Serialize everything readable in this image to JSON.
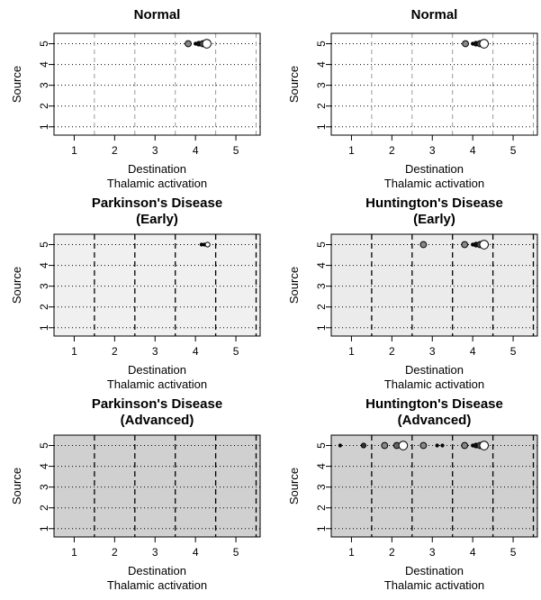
{
  "chart_data": [
    {
      "type": "scatter",
      "panel": "normal-left",
      "title": [
        "Normal"
      ],
      "xlabel": "Destination",
      "xlabel2": "Thalamic activation",
      "ylabel": "Source",
      "xlim": [
        0.5,
        5.6
      ],
      "ylim": [
        0.6,
        5.5
      ],
      "xticks": [
        1,
        2,
        3,
        4,
        5
      ],
      "yticks": [
        1,
        2,
        3,
        4,
        5
      ],
      "background": "#ffffff",
      "grid": "light-dashed",
      "points": [
        {
          "x": 3.82,
          "y": 5,
          "size": "medium",
          "fill": "#888888"
        },
        {
          "x": 4.0,
          "y": 5,
          "size": "tiny",
          "fill": "#000000"
        },
        {
          "x": 4.08,
          "y": 5,
          "size": "small",
          "fill": "#111111"
        },
        {
          "x": 4.18,
          "y": 5,
          "size": "medium",
          "fill": "#555555"
        },
        {
          "x": 4.28,
          "y": 5,
          "size": "large",
          "fill": "#ffffff"
        }
      ]
    },
    {
      "type": "scatter",
      "panel": "normal-right",
      "title": [
        "Normal"
      ],
      "xlabel": "Destination",
      "xlabel2": "Thalamic activation",
      "ylabel": "Source",
      "xlim": [
        0.5,
        5.6
      ],
      "ylim": [
        0.6,
        5.5
      ],
      "xticks": [
        1,
        2,
        3,
        4,
        5
      ],
      "yticks": [
        1,
        2,
        3,
        4,
        5
      ],
      "background": "#ffffff",
      "grid": "light-dashed",
      "points": [
        {
          "x": 3.82,
          "y": 5,
          "size": "medium",
          "fill": "#888888"
        },
        {
          "x": 4.0,
          "y": 5,
          "size": "tiny",
          "fill": "#000000"
        },
        {
          "x": 4.08,
          "y": 5,
          "size": "small",
          "fill": "#111111"
        },
        {
          "x": 4.18,
          "y": 5,
          "size": "medium",
          "fill": "#555555"
        },
        {
          "x": 4.28,
          "y": 5,
          "size": "large",
          "fill": "#ffffff"
        }
      ]
    },
    {
      "type": "scatter",
      "panel": "parkinsons-early",
      "title": [
        "Parkinson's Disease",
        "(Early)"
      ],
      "xlabel": "Destination",
      "xlabel2": "Thalamic activation",
      "ylabel": "Source",
      "xlim": [
        0.5,
        5.6
      ],
      "ylim": [
        0.6,
        5.5
      ],
      "xticks": [
        1,
        2,
        3,
        4,
        5
      ],
      "yticks": [
        1,
        2,
        3,
        4,
        5
      ],
      "background": "#f0f0f0",
      "grid": "dark-dashed",
      "points": [
        {
          "x": 4.15,
          "y": 5,
          "size": "tiny",
          "fill": "#000000"
        },
        {
          "x": 4.22,
          "y": 5,
          "size": "tiny",
          "fill": "#000000"
        },
        {
          "x": 4.3,
          "y": 5,
          "size": "small",
          "fill": "#ffffff"
        }
      ]
    },
    {
      "type": "scatter",
      "panel": "huntingtons-early",
      "title": [
        "Huntington's Disease",
        "(Early)"
      ],
      "xlabel": "Destination",
      "xlabel2": "Thalamic activation",
      "ylabel": "Source",
      "xlim": [
        0.5,
        5.6
      ],
      "ylim": [
        0.6,
        5.5
      ],
      "xticks": [
        1,
        2,
        3,
        4,
        5
      ],
      "yticks": [
        1,
        2,
        3,
        4,
        5
      ],
      "background": "#ebebeb",
      "grid": "dark-dashed",
      "points": [
        {
          "x": 2.78,
          "y": 5,
          "size": "medium",
          "fill": "#888888"
        },
        {
          "x": 3.8,
          "y": 5,
          "size": "medium",
          "fill": "#888888"
        },
        {
          "x": 4.0,
          "y": 5,
          "size": "tiny",
          "fill": "#000000"
        },
        {
          "x": 4.08,
          "y": 5,
          "size": "small",
          "fill": "#111111"
        },
        {
          "x": 4.18,
          "y": 5,
          "size": "medium",
          "fill": "#555555"
        },
        {
          "x": 4.28,
          "y": 5,
          "size": "large",
          "fill": "#ffffff"
        }
      ]
    },
    {
      "type": "scatter",
      "panel": "parkinsons-advanced",
      "title": [
        "Parkinson's Disease",
        "(Advanced)"
      ],
      "xlabel": "Destination",
      "xlabel2": "Thalamic activation",
      "ylabel": "Source",
      "xlim": [
        0.5,
        5.6
      ],
      "ylim": [
        0.6,
        5.5
      ],
      "xticks": [
        1,
        2,
        3,
        4,
        5
      ],
      "yticks": [
        1,
        2,
        3,
        4,
        5
      ],
      "background": "#d0d0d0",
      "grid": "dark-dashed",
      "points": []
    },
    {
      "type": "scatter",
      "panel": "huntingtons-advanced",
      "title": [
        "Huntington's Disease",
        "(Advanced)"
      ],
      "xlabel": "Destination",
      "xlabel2": "Thalamic activation",
      "ylabel": "Source",
      "xlim": [
        0.5,
        5.6
      ],
      "ylim": [
        0.6,
        5.5
      ],
      "xticks": [
        1,
        2,
        3,
        4,
        5
      ],
      "yticks": [
        1,
        2,
        3,
        4,
        5
      ],
      "background": "#d0d0d0",
      "grid": "dark-dashed",
      "points": [
        {
          "x": 0.72,
          "y": 5,
          "size": "tiny",
          "fill": "#000000"
        },
        {
          "x": 1.3,
          "y": 5,
          "size": "small",
          "fill": "#333333"
        },
        {
          "x": 1.82,
          "y": 5,
          "size": "medium",
          "fill": "#888888"
        },
        {
          "x": 2.12,
          "y": 5,
          "size": "medium",
          "fill": "#666666"
        },
        {
          "x": 2.28,
          "y": 5,
          "size": "large",
          "fill": "#ffffff"
        },
        {
          "x": 2.78,
          "y": 5,
          "size": "medium",
          "fill": "#888888"
        },
        {
          "x": 3.12,
          "y": 5,
          "size": "tiny",
          "fill": "#000000"
        },
        {
          "x": 3.25,
          "y": 5,
          "size": "tiny",
          "fill": "#000000"
        },
        {
          "x": 3.8,
          "y": 5,
          "size": "medium",
          "fill": "#888888"
        },
        {
          "x": 4.0,
          "y": 5,
          "size": "tiny",
          "fill": "#000000"
        },
        {
          "x": 4.08,
          "y": 5,
          "size": "small",
          "fill": "#111111"
        },
        {
          "x": 4.18,
          "y": 5,
          "size": "medium",
          "fill": "#555555"
        },
        {
          "x": 4.28,
          "y": 5,
          "size": "large",
          "fill": "#ffffff"
        }
      ]
    }
  ]
}
